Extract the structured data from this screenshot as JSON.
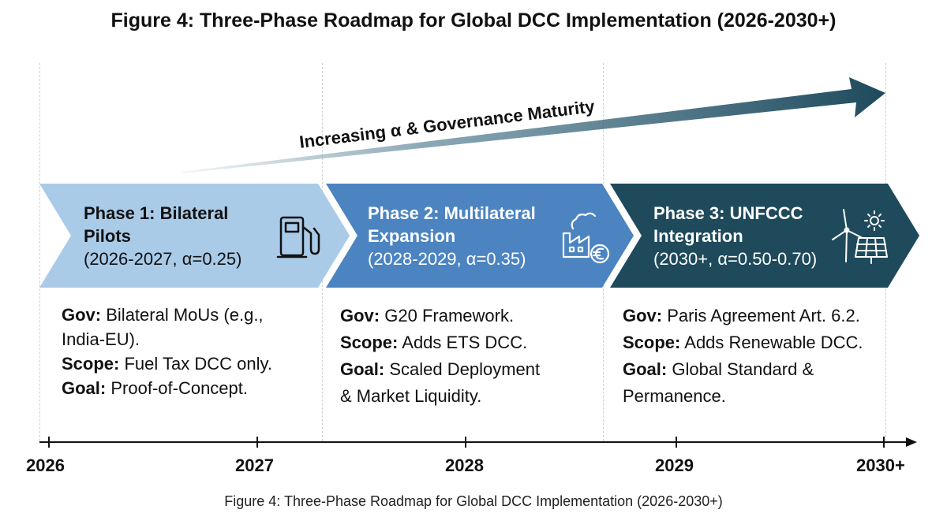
{
  "title": "Figure 4: Three-Phase Roadmap for Global DCC Implementation (2026-2030+)",
  "trend_label": "Increasing α & Governance Maturity",
  "phases": [
    {
      "title_line1": "Phase 1: Bilateral",
      "title_line2": "Pilots",
      "subtitle": "(2026-2027, α=0.25)",
      "icon": "fuel-pump-icon",
      "color": "#a9cbe8",
      "details": [
        {
          "key": "Gov:",
          "text": "Bilateral MoUs (e.g.,",
          "cont": "India-EU)."
        },
        {
          "key": "Scope:",
          "text": "Fuel Tax DCC only."
        },
        {
          "key": "Goal:",
          "text": "Proof-of-Concept."
        }
      ]
    },
    {
      "title_line1": "Phase 2: Multilateral",
      "title_line2": "Expansion",
      "subtitle": "(2028-2029, α=0.35)",
      "icon": "factory-euro-icon",
      "color": "#4b84c1",
      "details": [
        {
          "key": "Gov:",
          "text": "G20 Framework."
        },
        {
          "key": "Scope:",
          "text": "Adds ETS DCC."
        },
        {
          "key": "Goal:",
          "text": "Scaled Deployment",
          "cont": "& Market Liquidity."
        }
      ]
    },
    {
      "title_line1": "Phase 3: UNFCCC",
      "title_line2": "Integration",
      "subtitle": "(2030+, α=0.50-0.70)",
      "icon": "wind-solar-icon",
      "color": "#1e4a5c",
      "details": [
        {
          "key": "Gov:",
          "text": "Paris Agreement Art. 6.2."
        },
        {
          "key": "Scope:",
          "text": "Adds Renewable DCC."
        },
        {
          "key": "Goal:",
          "text": "Global Standard &",
          "cont": "Permanence."
        }
      ]
    }
  ],
  "timeline": {
    "years": [
      "2026",
      "2027",
      "2028",
      "2029",
      "2030+"
    ]
  },
  "caption": "Figure 4: Three-Phase Roadmap for Global DCC Implementation (2026-2030+)"
}
